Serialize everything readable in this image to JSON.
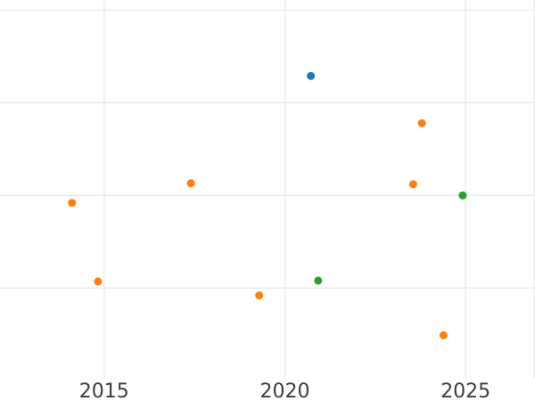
{
  "chart_data": {
    "type": "scatter",
    "title": "",
    "xlabel": "",
    "ylabel": "",
    "grid": true,
    "legend": false,
    "x_axis": {
      "tick_labels": [
        "2015",
        "2020",
        "2025"
      ],
      "tick_values": [
        2015,
        2020,
        2025
      ],
      "range": [
        2012.12,
        2026.92
      ]
    },
    "y_axis": {
      "tick_labels": [],
      "labels_visible": false,
      "gridline_values": [
        1,
        2,
        3,
        4
      ],
      "range": [
        0.02,
        4.11
      ]
    },
    "series": [
      {
        "name": "orange",
        "color": "#ff7f0e",
        "points": [
          {
            "x": 2014.11,
            "y": 1.92
          },
          {
            "x": 2014.83,
            "y": 1.07
          },
          {
            "x": 2017.4,
            "y": 2.13
          },
          {
            "x": 2019.29,
            "y": 0.92
          },
          {
            "x": 2023.55,
            "y": 2.12
          },
          {
            "x": 2023.79,
            "y": 2.78
          },
          {
            "x": 2024.39,
            "y": 0.49
          }
        ]
      },
      {
        "name": "blue",
        "color": "#1f77b4",
        "points": [
          {
            "x": 2020.72,
            "y": 3.29
          }
        ]
      },
      {
        "name": "green",
        "color": "#2ca02c",
        "points": [
          {
            "x": 2020.92,
            "y": 1.08
          },
          {
            "x": 2024.92,
            "y": 2.0
          }
        ]
      }
    ],
    "style": {
      "background_color": "#ffffff",
      "gridline_color": "#e8e8e8",
      "tick_label_color": "#3d3d3d",
      "marker_radius": 4.5,
      "right_edge_line": true
    }
  }
}
